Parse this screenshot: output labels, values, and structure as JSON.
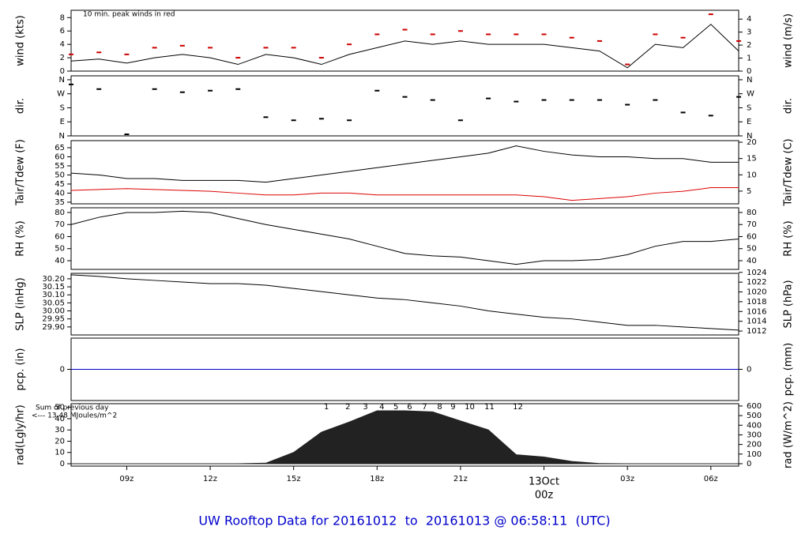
{
  "chart_data": [
    {
      "type": "line",
      "ylabel": "wind (kts)",
      "y2label": "wind (m/s)",
      "annotation": "10 min. peak winds in red",
      "annotation_color": "#cc0000",
      "x": [
        7,
        8,
        9,
        10,
        11,
        12,
        13,
        14,
        15,
        16,
        17,
        18,
        19,
        20,
        21,
        22,
        23,
        24,
        25,
        26,
        27,
        28,
        29,
        30,
        31
      ],
      "xlim": [
        7,
        31
      ],
      "ylim": [
        0,
        9.1
      ],
      "yticks": [
        0,
        2,
        4,
        6,
        8
      ],
      "y2lim": [
        0,
        4.68
      ],
      "y2ticks": [
        0,
        1,
        2,
        3,
        4
      ],
      "series": [
        {
          "color": "#000000",
          "style": "line",
          "values": [
            1.5,
            1.8,
            1.2,
            2,
            2.5,
            2,
            1,
            2.5,
            2,
            1,
            2.5,
            3.5,
            4.5,
            4,
            4.5,
            4,
            4,
            4,
            3.5,
            3,
            0.5,
            4,
            3.5,
            7,
            3
          ]
        },
        {
          "color": "#cc0000",
          "style": "dash",
          "values": [
            2.5,
            2.8,
            2.5,
            3.5,
            3.8,
            3.5,
            2,
            3.5,
            3.5,
            2,
            4,
            5.5,
            6.2,
            5.5,
            6,
            5.5,
            5.5,
            5.5,
            5,
            4.5,
            1,
            5.5,
            5,
            8.5,
            4.5
          ]
        }
      ]
    },
    {
      "type": "scatter",
      "ylabel": "dir.",
      "y2label": "dir.",
      "x": [
        7,
        8,
        9,
        10,
        11,
        12,
        13,
        14,
        15,
        16,
        17,
        18,
        19,
        20,
        21,
        22,
        23,
        24,
        25,
        26,
        27,
        28,
        29,
        30,
        31
      ],
      "xlim": [
        7,
        31
      ],
      "ylim": [
        0,
        385
      ],
      "yticks": [
        {
          "value": 0,
          "label": "N"
        },
        {
          "value": 90,
          "label": "E"
        },
        {
          "value": 180,
          "label": "S"
        },
        {
          "value": 270,
          "label": "W"
        },
        {
          "value": 360,
          "label": "N"
        }
      ],
      "y2lim": [
        0,
        385
      ],
      "y2ticks": [
        {
          "value": 0,
          "label": "N"
        },
        {
          "value": 90,
          "label": "E"
        },
        {
          "value": 180,
          "label": "S"
        },
        {
          "value": 270,
          "label": "W"
        },
        {
          "value": 360,
          "label": "N"
        }
      ],
      "series": [
        {
          "color": "#000000",
          "values": [
            330,
            300,
            10,
            300,
            280,
            290,
            300,
            120,
            100,
            110,
            100,
            290,
            250,
            230,
            100,
            240,
            220,
            230,
            230,
            230,
            200,
            230,
            150,
            130,
            250
          ]
        }
      ]
    },
    {
      "type": "line",
      "ylabel": "Tair/Tdew (F)",
      "y2label": "Tair/Tdew (C)",
      "x": [
        7,
        8,
        9,
        10,
        11,
        12,
        13,
        14,
        15,
        16,
        17,
        18,
        19,
        20,
        21,
        22,
        23,
        24,
        25,
        26,
        27,
        28,
        29,
        30,
        31
      ],
      "xlim": [
        7,
        31
      ],
      "ylim": [
        34.1,
        68.9
      ],
      "yticks": [
        35,
        40,
        45,
        50,
        55,
        60,
        65
      ],
      "y2lim": [
        1.1,
        20.5
      ],
      "y2ticks": [
        5,
        10,
        15,
        20
      ],
      "series": [
        {
          "color": "#000000",
          "style": "line",
          "values": [
            51,
            50,
            48,
            48,
            47,
            47,
            47,
            46,
            48,
            50,
            52,
            54,
            56,
            58,
            60,
            62,
            66,
            63,
            61,
            60,
            60,
            59,
            59,
            57,
            57
          ]
        },
        {
          "color": "#dd0000",
          "style": "line",
          "values": [
            41.5,
            42,
            42.5,
            42,
            41.5,
            41,
            40,
            39,
            39,
            40,
            40,
            39,
            39,
            39,
            39,
            39,
            39,
            38,
            36,
            37,
            38,
            40,
            41,
            43,
            43
          ]
        }
      ]
    },
    {
      "type": "line",
      "ylabel": "RH (%)",
      "y2label": "RH (%)",
      "x": [
        7,
        8,
        9,
        10,
        11,
        12,
        13,
        14,
        15,
        16,
        17,
        18,
        19,
        20,
        21,
        22,
        23,
        24,
        25,
        26,
        27,
        28,
        29,
        30,
        31
      ],
      "xlim": [
        7,
        31
      ],
      "ylim": [
        32.8,
        83.9
      ],
      "yticks": [
        40,
        50,
        60,
        70,
        80
      ],
      "y2lim": [
        32.8,
        83.9
      ],
      "y2ticks": [
        40,
        50,
        60,
        70,
        80
      ],
      "series": [
        {
          "color": "#000000",
          "style": "line",
          "values": [
            70,
            76,
            80,
            80,
            81,
            80,
            75,
            70,
            66,
            62,
            58,
            52,
            46,
            44,
            43,
            40,
            37,
            40,
            40,
            41,
            45,
            52,
            56,
            56,
            58
          ]
        }
      ]
    },
    {
      "type": "line",
      "ylabel": "SLP (inHg)",
      "y2label": "SLP (hPa)",
      "x": [
        7,
        8,
        9,
        10,
        11,
        12,
        13,
        14,
        15,
        16,
        17,
        18,
        19,
        20,
        21,
        22,
        23,
        24,
        25,
        26,
        27,
        28,
        29,
        30,
        31
      ],
      "xlim": [
        7,
        31
      ],
      "ylim": [
        29.85,
        30.234
      ],
      "yticks": [
        {
          "value": 29.9,
          "label": "29.90"
        },
        29.95,
        {
          "value": 30,
          "label": "30.00"
        },
        30.05,
        {
          "value": 30.1,
          "label": "30.10"
        },
        30.15,
        {
          "value": 30.2,
          "label": "30.20"
        }
      ],
      "y2lim": [
        1011.2,
        1023.8
      ],
      "y2ticks": [
        1012,
        1014,
        1016,
        1018,
        1020,
        1022,
        1024
      ],
      "series": [
        {
          "color": "#000000",
          "style": "line",
          "values": [
            30.225,
            30.215,
            30.2,
            30.19,
            30.18,
            30.17,
            30.17,
            30.16,
            30.14,
            30.12,
            30.1,
            30.08,
            30.07,
            30.05,
            30.03,
            30.0,
            29.98,
            29.96,
            29.95,
            29.93,
            29.91,
            29.91,
            29.9,
            29.89,
            29.88
          ]
        }
      ]
    },
    {
      "type": "line",
      "ylabel": "pcp. (in)",
      "y2label": "pcp. (mm)",
      "x": [
        7,
        8,
        9,
        10,
        11,
        12,
        13,
        14,
        15,
        16,
        17,
        18,
        19,
        20,
        21,
        22,
        23,
        24,
        25,
        26,
        27,
        28,
        29,
        30,
        31
      ],
      "xlim": [
        7,
        31
      ],
      "ylim": [
        -0.1,
        0.1
      ],
      "yticks": [
        0
      ],
      "y2lim": [
        -2.54,
        2.54
      ],
      "y2ticks": [
        0
      ],
      "series": [
        {
          "color": "#0000cc",
          "style": "line",
          "values": [
            0,
            0,
            0,
            0,
            0,
            0,
            0,
            0,
            0,
            0,
            0,
            0,
            0,
            0,
            0,
            0,
            0,
            0,
            0,
            0,
            0,
            0,
            0,
            0,
            0
          ]
        }
      ]
    },
    {
      "type": "area",
      "ylabel": "rad(Lgly/hr)",
      "y2label": "rad (W/m^2)",
      "annotation": "Sum of previous day",
      "annotation2": "<--- 13.48 MJoules/m^2",
      "annotation_color": "#9900cc",
      "hour_marks": {
        "x": [
          16.18,
          16.95,
          17.58,
          18.17,
          18.68,
          19.17,
          19.71,
          20.25,
          20.73,
          21.33,
          22.04,
          23.06
        ],
        "labels": [
          "1",
          "2",
          "3",
          "4",
          "5",
          "6",
          "7",
          "8",
          "9",
          "10",
          "11",
          "12"
        ]
      },
      "x": [
        7,
        8,
        9,
        10,
        11,
        12,
        13,
        14,
        15,
        16,
        17,
        18,
        19,
        20,
        21,
        22,
        23,
        24,
        25,
        26,
        27,
        28,
        29,
        30,
        31
      ],
      "xlim": [
        7,
        31
      ],
      "ylim": [
        -2.1,
        53.3
      ],
      "yticks": [
        0,
        10,
        20,
        30,
        40,
        50
      ],
      "y2lim": [
        -25,
        624
      ],
      "y2ticks": [
        0,
        100,
        200,
        300,
        400,
        500,
        600
      ],
      "xticks": [
        {
          "value": 9,
          "label": "09z"
        },
        {
          "value": 12,
          "label": "12z"
        },
        {
          "value": 15,
          "label": "15z"
        },
        {
          "value": 18,
          "label": "18z"
        },
        {
          "value": 21,
          "label": "21z"
        },
        {
          "value": 24,
          "label": "00z"
        },
        {
          "value": 27,
          "label": "03z"
        },
        {
          "value": 30,
          "label": "06z"
        }
      ],
      "date_label": "13Oct",
      "date_x": 24,
      "date_color": "#cc0000",
      "series": [
        {
          "color": "#222222",
          "values": [
            0,
            0,
            0,
            0,
            0,
            0,
            0,
            0.5,
            10,
            28,
            37,
            47,
            47,
            46,
            38,
            30,
            8,
            6,
            2,
            0.2,
            0,
            0,
            0,
            0,
            0
          ]
        }
      ]
    }
  ],
  "title": "UW Rooftop Data for 20161012  to  20161013 @ 06:58:11  (UTC)"
}
